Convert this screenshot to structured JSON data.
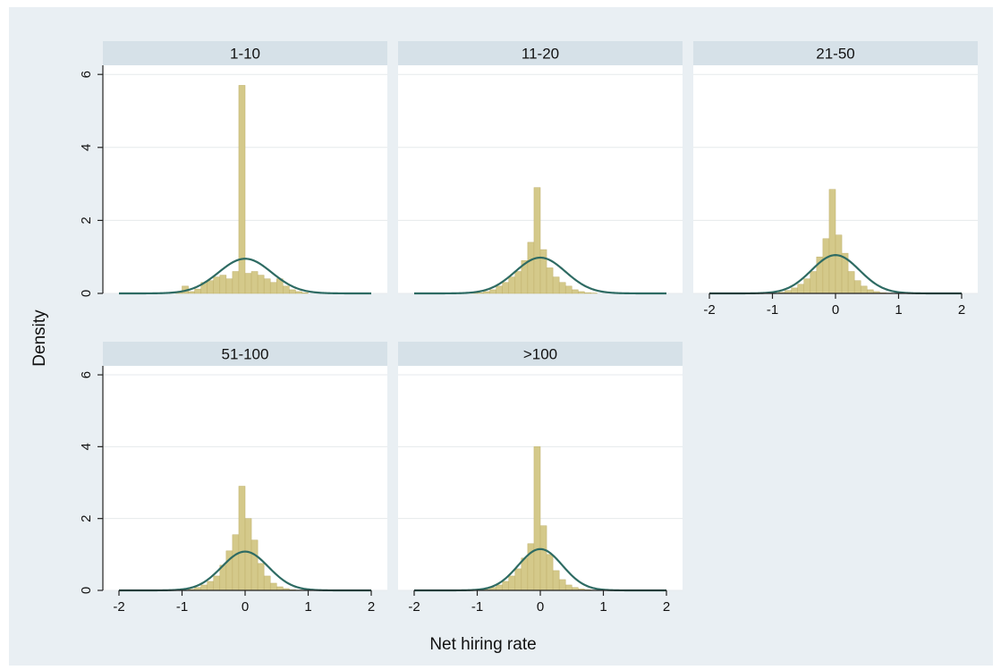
{
  "chart_data": {
    "type": "histogram",
    "xlabel": "Net hiring rate",
    "ylabel": "Density",
    "xlim": [
      -2,
      2
    ],
    "ylim": [
      0,
      6
    ],
    "xticks": [
      "-2",
      "-1",
      "0",
      "1",
      "2"
    ],
    "yticks": [
      "0",
      "2",
      "4",
      "6"
    ],
    "layout": "2 rows x 3 columns, 5 panels",
    "bin_width": 0.1,
    "bin_centers": [
      -1.05,
      -0.95,
      -0.85,
      -0.75,
      -0.65,
      -0.55,
      -0.45,
      -0.35,
      -0.25,
      -0.15,
      -0.05,
      0.05,
      0.15,
      0.25,
      0.35,
      0.45,
      0.55,
      0.65,
      0.75,
      0.85,
      0.95
    ],
    "colors": {
      "bars": "#d4c98a",
      "curve": "#2e6b63",
      "strip": "#d6e1e8",
      "background": "#e9eff3"
    },
    "panels": [
      {
        "title": "1-10",
        "bar_values": [
          0.02,
          0.2,
          0.05,
          0.12,
          0.3,
          0.35,
          0.45,
          0.5,
          0.4,
          0.6,
          5.7,
          0.55,
          0.6,
          0.5,
          0.4,
          0.3,
          0.4,
          0.2,
          0.1,
          0.05,
          0.02
        ],
        "curve_peak": 0.95,
        "curve_sd": 0.42
      },
      {
        "title": "11-20",
        "bar_values": [
          0.01,
          0.02,
          0.05,
          0.1,
          0.2,
          0.3,
          0.45,
          0.6,
          0.9,
          1.4,
          2.9,
          1.2,
          0.7,
          0.45,
          0.3,
          0.2,
          0.1,
          0.05,
          0.02,
          0.01,
          0.0
        ],
        "curve_peak": 0.98,
        "curve_sd": 0.4
      },
      {
        "title": "21-50",
        "bar_values": [
          0.0,
          0.01,
          0.03,
          0.08,
          0.15,
          0.25,
          0.4,
          0.6,
          1.0,
          1.5,
          2.85,
          1.6,
          1.1,
          0.6,
          0.35,
          0.2,
          0.1,
          0.05,
          0.02,
          0.01,
          0.0
        ],
        "curve_peak": 1.05,
        "curve_sd": 0.38
      },
      {
        "title": "51-100",
        "bar_values": [
          0.0,
          0.01,
          0.03,
          0.08,
          0.15,
          0.25,
          0.4,
          0.7,
          1.1,
          1.55,
          2.9,
          2.0,
          1.4,
          0.75,
          0.4,
          0.2,
          0.1,
          0.05,
          0.02,
          0.01,
          0.0
        ],
        "curve_peak": 1.08,
        "curve_sd": 0.37
      },
      {
        "title": ">100",
        "bar_values": [
          0.0,
          0.01,
          0.03,
          0.08,
          0.15,
          0.25,
          0.4,
          0.6,
          0.9,
          1.3,
          4.0,
          1.8,
          1.0,
          0.55,
          0.3,
          0.15,
          0.08,
          0.04,
          0.02,
          0.01,
          0.0
        ],
        "curve_peak": 1.15,
        "curve_sd": 0.35
      }
    ]
  }
}
